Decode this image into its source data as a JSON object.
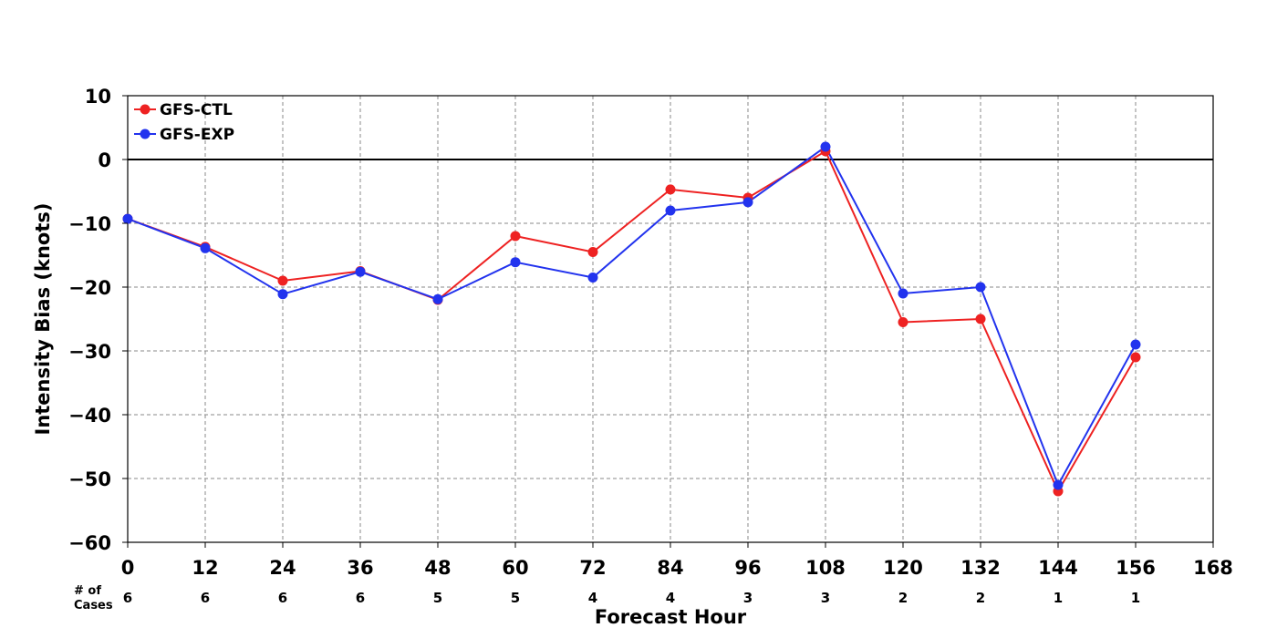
{
  "chart_data": {
    "type": "line",
    "title": "",
    "xlabel": "Forecast Hour",
    "ylabel": "Intensity Bias (knots)",
    "xlim": [
      0,
      168
    ],
    "ylim": [
      -60,
      10
    ],
    "x_ticks": [
      "0",
      "12",
      "24",
      "36",
      "48",
      "60",
      "72",
      "84",
      "96",
      "108",
      "120",
      "132",
      "144",
      "156",
      "168"
    ],
    "y_ticks": [
      "10",
      "0",
      "−10",
      "−20",
      "−30",
      "−40",
      "−50",
      "−60"
    ],
    "grid": true,
    "legend_position": "top-left",
    "cases_label": [
      "# of",
      "Cases"
    ],
    "cases": [
      6,
      6,
      6,
      6,
      5,
      5,
      4,
      4,
      3,
      3,
      2,
      2,
      1,
      1
    ],
    "x": [
      0,
      12,
      24,
      36,
      48,
      60,
      72,
      84,
      96,
      108,
      120,
      132,
      144,
      156
    ],
    "series": [
      {
        "name": "GFS-CTL",
        "color": "#ee2222",
        "values": [
          -9.3,
          -13.7,
          -19.0,
          -17.5,
          -22.0,
          -12.0,
          -14.5,
          -4.7,
          -6.0,
          1.3,
          -25.5,
          -25.0,
          -52.0,
          -31.0
        ]
      },
      {
        "name": "GFS-EXP",
        "color": "#2233ee",
        "values": [
          -9.3,
          -13.9,
          -21.1,
          -17.6,
          -21.9,
          -16.1,
          -18.5,
          -8.0,
          -6.7,
          2.0,
          -21.0,
          -20.0,
          -51.0,
          -29.0
        ]
      }
    ]
  }
}
